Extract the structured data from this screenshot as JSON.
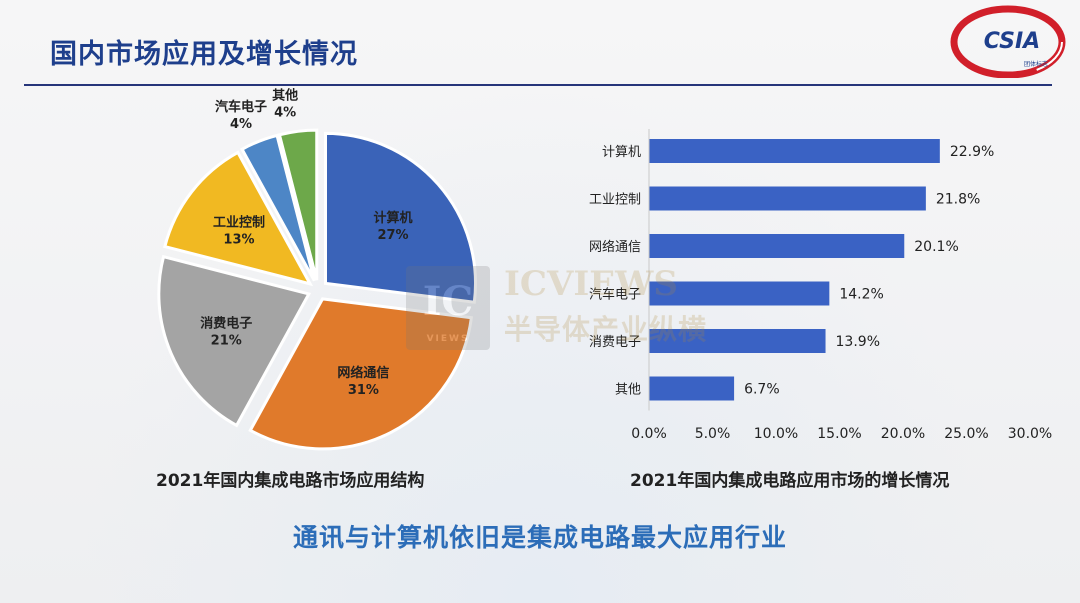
{
  "slide": {
    "title": "国内市场应用及增长情况",
    "logo_text": "CSIA",
    "logo_sub": "团体标志",
    "watermark_box": "IC",
    "watermark_box_sub": "VIEWS",
    "watermark_line1": "ICVIEWS",
    "watermark_line2": "半导体产业纵横",
    "bottom_text": "通讯与计算机依旧是集成电路最大应用行业"
  },
  "colors": {
    "title": "#1e3f8c",
    "bar": "#3a62c4",
    "bottom_text": "#2c6db8",
    "rule": "#26357a",
    "logo_red": "#d11f2a"
  },
  "chart_data": [
    {
      "type": "pie",
      "title": "2021年国内集成电路市场应用结构",
      "slices": [
        {
          "label": "计算机",
          "value": 27,
          "value_label": "27%",
          "color": "#3a63b8"
        },
        {
          "label": "网络通信",
          "value": 31,
          "value_label": "31%",
          "color": "#e07a2b"
        },
        {
          "label": "消费电子",
          "value": 21,
          "value_label": "21%",
          "color": "#a4a4a4"
        },
        {
          "label": "工业控制",
          "value": 13,
          "value_label": "13%",
          "color": "#f1b922"
        },
        {
          "label": "汽车电子",
          "value": 4,
          "value_label": "4%",
          "color": "#4d86c6"
        },
        {
          "label": "其他",
          "value": 4,
          "value_label": "4%",
          "color": "#6da84a"
        }
      ]
    },
    {
      "type": "bar",
      "orientation": "horizontal",
      "title": "2021年国内集成电路应用市场的增长情况",
      "categories": [
        "计算机",
        "工业控制",
        "网络通信",
        "汽车电子",
        "消费电子",
        "其他"
      ],
      "values": [
        22.9,
        21.8,
        20.1,
        14.2,
        13.9,
        6.7
      ],
      "value_labels": [
        "22.9%",
        "21.8%",
        "20.1%",
        "14.2%",
        "13.9%",
        "6.7%"
      ],
      "xlim": [
        0,
        30
      ],
      "xticks": [
        "0.0%",
        "5.0%",
        "10.0%",
        "15.0%",
        "20.0%",
        "25.0%",
        "30.0%"
      ],
      "grid": false
    }
  ]
}
